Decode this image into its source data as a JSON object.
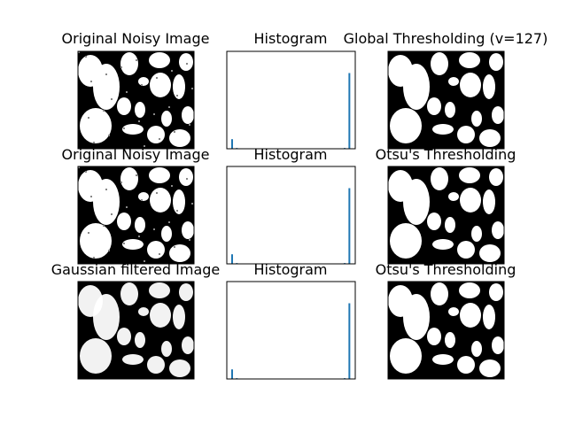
{
  "figure": {
    "rows": [
      {
        "image_title": "Original Noisy Image",
        "hist_title": "Histogram",
        "threshold_title": "Global Thresholding (v=127)"
      },
      {
        "image_title": "Original Noisy Image",
        "hist_title": "Histogram",
        "threshold_title": "Otsu's Thresholding"
      },
      {
        "image_title": "Gaussian filtered Image",
        "hist_title": "Histogram",
        "threshold_title": "Otsu's Thresholding"
      }
    ]
  },
  "chart_data": [
    {
      "type": "heatmap",
      "title": "Original Noisy Image",
      "content": "grayscale noisy image of white blobs on black background"
    },
    {
      "type": "bar",
      "title": "Histogram",
      "bins": [
        0,
        10,
        20,
        240,
        250
      ],
      "values": [
        0.12,
        0.01,
        0.005,
        0.01,
        0.95
      ],
      "color": "#1f77b4"
    },
    {
      "type": "heatmap",
      "title": "Global Thresholding (v=127)",
      "content": "binary image"
    },
    {
      "type": "heatmap",
      "title": "Original Noisy Image",
      "content": "grayscale noisy image of white blobs on black background"
    },
    {
      "type": "bar",
      "title": "Histogram",
      "bins": [
        0,
        10,
        20,
        240,
        250
      ],
      "values": [
        0.12,
        0.01,
        0.005,
        0.01,
        0.95
      ],
      "color": "#1f77b4"
    },
    {
      "type": "heatmap",
      "title": "Otsu's Thresholding",
      "content": "binary image"
    },
    {
      "type": "heatmap",
      "title": "Gaussian filtered Image",
      "content": "smoothed grayscale image"
    },
    {
      "type": "bar",
      "title": "Histogram",
      "bins": [
        0,
        10,
        20,
        240,
        250
      ],
      "values": [
        0.12,
        0.01,
        0.005,
        0.01,
        0.95
      ],
      "color": "#1f77b4"
    },
    {
      "type": "heatmap",
      "title": "Otsu's Thresholding",
      "content": "binary image"
    }
  ]
}
